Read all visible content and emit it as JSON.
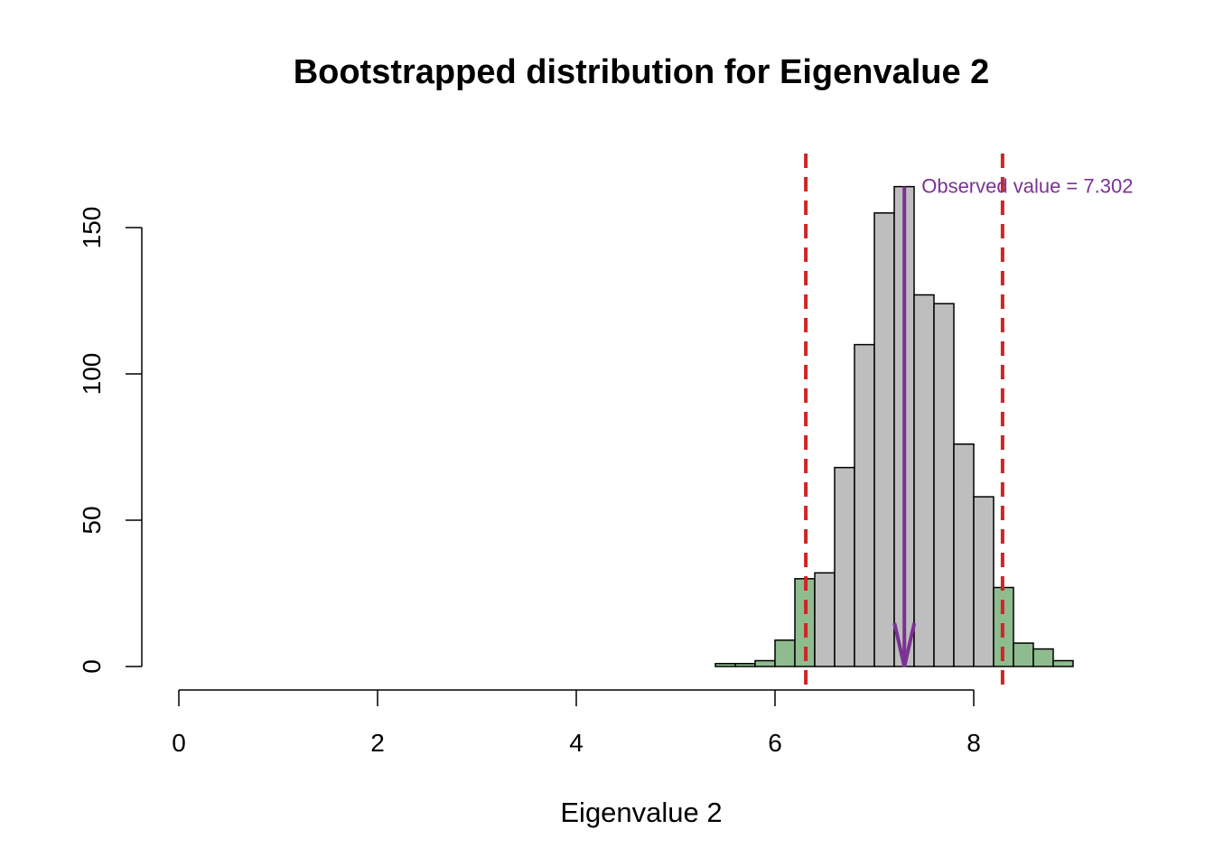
{
  "chart_data": {
    "type": "histogram",
    "title": "Bootstrapped distribution for Eigenvalue 2",
    "xlabel": "Eigenvalue 2",
    "ylabel": "",
    "xlim": [
      0,
      9
    ],
    "ylim": [
      0,
      160
    ],
    "x_ticks": [
      0,
      2,
      4,
      6,
      8
    ],
    "y_ticks": [
      0,
      50,
      100,
      150
    ],
    "bin_width": 0.2,
    "bins": [
      {
        "start": 5.4,
        "end": 5.6,
        "count": 1,
        "highlight": true
      },
      {
        "start": 5.6,
        "end": 5.8,
        "count": 1,
        "highlight": true
      },
      {
        "start": 5.8,
        "end": 6.0,
        "count": 2,
        "highlight": true
      },
      {
        "start": 6.0,
        "end": 6.2,
        "count": 9,
        "highlight": true
      },
      {
        "start": 6.2,
        "end": 6.4,
        "count": 30,
        "highlight": true
      },
      {
        "start": 6.4,
        "end": 6.6,
        "count": 32,
        "highlight": false
      },
      {
        "start": 6.6,
        "end": 6.8,
        "count": 68,
        "highlight": false
      },
      {
        "start": 6.8,
        "end": 7.0,
        "count": 110,
        "highlight": false
      },
      {
        "start": 7.0,
        "end": 7.2,
        "count": 155,
        "highlight": false
      },
      {
        "start": 7.2,
        "end": 7.4,
        "count": 164,
        "highlight": false
      },
      {
        "start": 7.4,
        "end": 7.6,
        "count": 127,
        "highlight": false
      },
      {
        "start": 7.6,
        "end": 7.8,
        "count": 124,
        "highlight": false
      },
      {
        "start": 7.8,
        "end": 8.0,
        "count": 76,
        "highlight": false
      },
      {
        "start": 8.0,
        "end": 8.2,
        "count": 58,
        "highlight": false
      },
      {
        "start": 8.2,
        "end": 8.4,
        "count": 27,
        "highlight": true
      },
      {
        "start": 8.4,
        "end": 8.6,
        "count": 8,
        "highlight": true
      },
      {
        "start": 8.6,
        "end": 8.8,
        "count": 6,
        "highlight": true
      },
      {
        "start": 8.8,
        "end": 9.0,
        "count": 2,
        "highlight": true
      }
    ],
    "ci_lines": [
      6.31,
      8.29
    ],
    "observed_value": 7.302,
    "annotation": "Observed value = 7.302",
    "colors": {
      "bar_fill": "#bebebe",
      "bar_highlight_fill": "#8fbc8f",
      "bar_stroke": "#000000",
      "ci_line": "#cd2626",
      "observed": "#7b3294"
    }
  }
}
